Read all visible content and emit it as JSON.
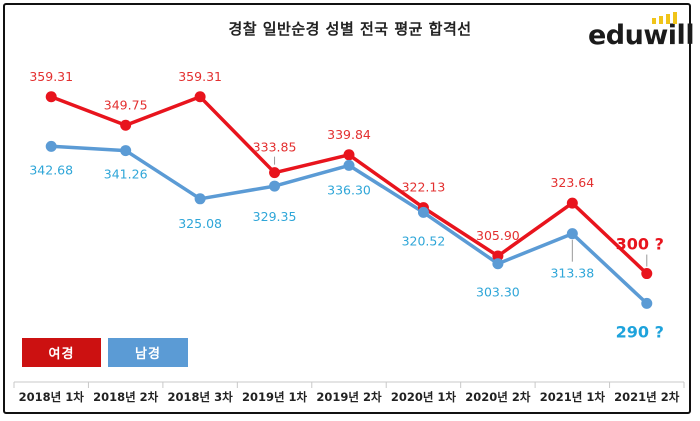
{
  "title": "경찰 일반순경 성별 전국 평균 합격선",
  "logo": {
    "text": "eduwill",
    "accent_color": "#f0c419"
  },
  "colors": {
    "female": "#e8141d",
    "male": "#5b9bd5",
    "female_label": "#e33030",
    "male_label": "#2fa6d8"
  },
  "legend": [
    {
      "label": "여경",
      "color": "#cc1111"
    },
    {
      "label": "남경",
      "color": "#5b9bd5"
    }
  ],
  "chart_data": {
    "type": "line",
    "title": "경찰 일반순경 성별 전국 평균 합격선",
    "categories": [
      "2018년 1차",
      "2018년 2차",
      "2018년 3차",
      "2019년 1차",
      "2019년 2차",
      "2020년 1차",
      "2020년 2차",
      "2021년 1차",
      "2021년 2차"
    ],
    "series": [
      {
        "name": "여경",
        "values": [
          359.31,
          349.75,
          359.31,
          333.85,
          339.84,
          322.13,
          305.9,
          323.64,
          300
        ],
        "labels": [
          "359.31",
          "349.75",
          "359.31",
          "333.85",
          "339.84",
          "322.13",
          "305.90",
          "323.64",
          "300 ?"
        ]
      },
      {
        "name": "남경",
        "values": [
          342.68,
          341.26,
          325.08,
          329.35,
          336.3,
          320.52,
          303.3,
          313.38,
          290
        ],
        "labels": [
          "342.68",
          "341.26",
          "325.08",
          "329.35",
          "336.30",
          "320.52",
          "303.30",
          "313.38",
          "290 ?"
        ]
      }
    ],
    "ylim": [
      271,
      375
    ],
    "grid": false,
    "legend_position": "bottom-left"
  }
}
